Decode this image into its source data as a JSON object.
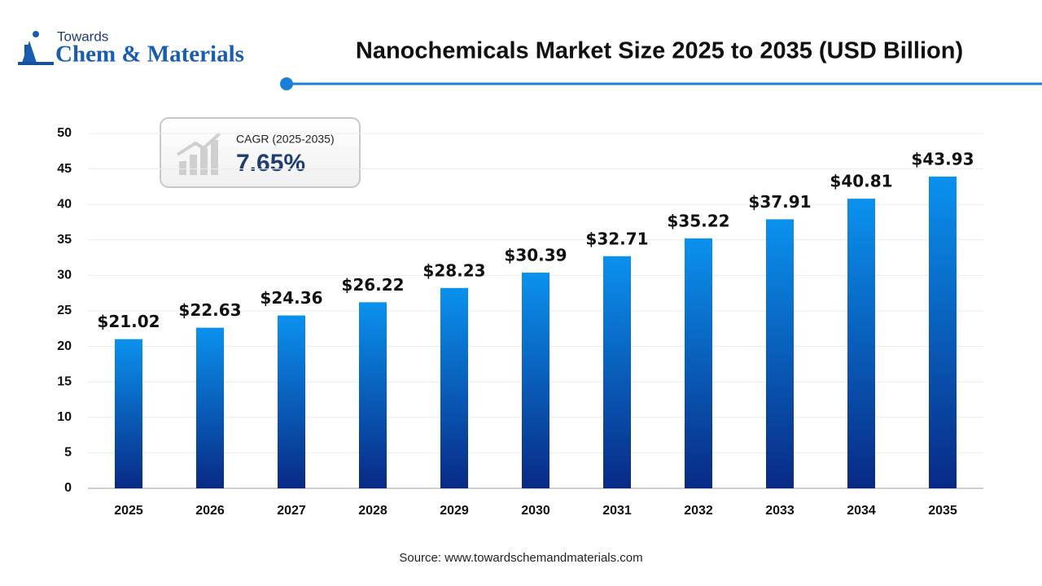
{
  "logo": {
    "top": "Towards",
    "name": "Chem & Materials"
  },
  "chart_data": {
    "type": "bar",
    "title": "Nanochemicals Market Size 2025 to 2035 (USD Billion)",
    "categories": [
      "2025",
      "2026",
      "2027",
      "2028",
      "2029",
      "2030",
      "2031",
      "2032",
      "2033",
      "2034",
      "2035"
    ],
    "values": [
      21.02,
      22.63,
      24.36,
      26.22,
      28.23,
      30.39,
      32.71,
      35.22,
      37.91,
      40.81,
      43.93
    ],
    "value_labels": [
      "$21.02",
      "$22.63",
      "$24.36",
      "$26.22",
      "$28.23",
      "$30.39",
      "$32.71",
      "$35.22",
      "$37.91",
      "$40.81",
      "$43.93"
    ],
    "color": [
      "#0a92ee",
      "#082a85"
    ],
    "ylim": [
      0,
      50
    ],
    "yticks": [
      0,
      5,
      10,
      15,
      20,
      25,
      30,
      35,
      40,
      45,
      50
    ],
    "grid": true,
    "annotations": {
      "cagr_label": "CAGR (2025-2035)",
      "cagr_value": "7.65%"
    },
    "source": "Source: www.towardschemandmaterials.com"
  }
}
